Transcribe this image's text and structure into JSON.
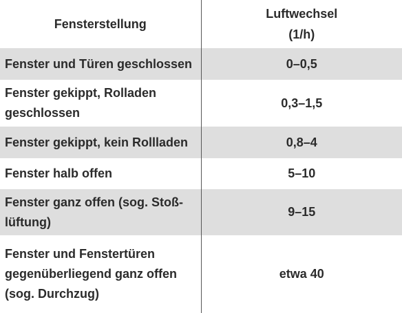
{
  "table": {
    "headers": {
      "setting": "Fensterstellung",
      "exchange_line1": "Luftwechsel",
      "exchange_line2": "(1/h)"
    },
    "rows": [
      {
        "setting_lines": [
          "Fenster und Türen geschlossen"
        ],
        "value": "0–0,5"
      },
      {
        "setting_lines": [
          "Fenster gekippt, Rolladen",
          "geschlossen"
        ],
        "value": "0,3–1,5"
      },
      {
        "setting_lines": [
          "Fenster gekippt, kein Rollladen"
        ],
        "value": "0,8–4"
      },
      {
        "setting_lines": [
          "Fenster halb offen"
        ],
        "value": "5–10"
      },
      {
        "setting_lines": [
          "Fenster ganz offen (sog. Stoß-",
          "lüftung)"
        ],
        "value": "9–15"
      },
      {
        "setting_lines": [
          "Fenster und Fenstertüren",
          "gegenüberliegend ganz offen",
          "(sog. Durchzug)"
        ],
        "value": "etwa 40"
      }
    ]
  }
}
